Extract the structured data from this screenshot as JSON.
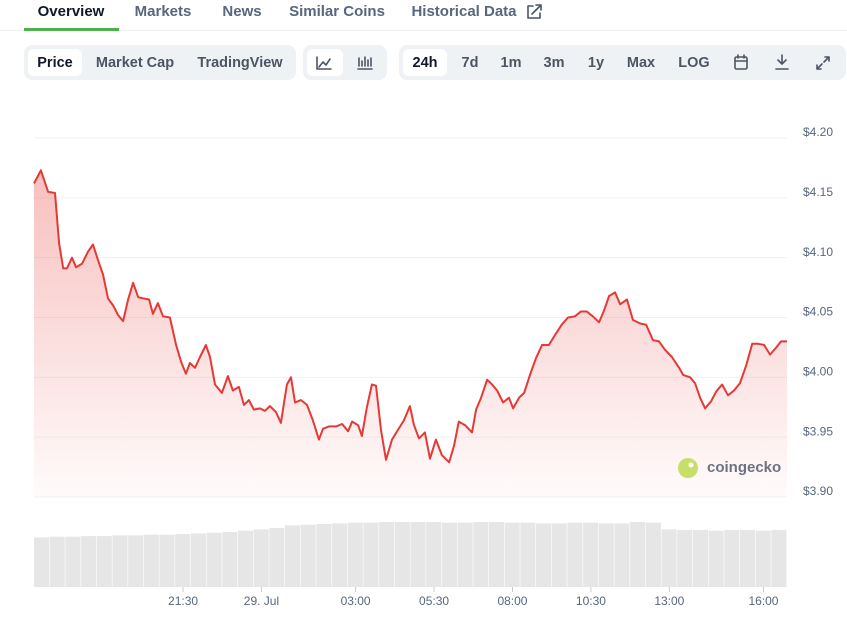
{
  "tabs": [
    {
      "label": "Overview",
      "active": true
    },
    {
      "label": "Markets",
      "active": false
    },
    {
      "label": "News",
      "active": false
    },
    {
      "label": "Similar Coins",
      "active": false
    },
    {
      "label": "Historical Data",
      "active": false
    }
  ],
  "toolbar": {
    "modes": [
      {
        "label": "Price",
        "active": true
      },
      {
        "label": "Market Cap",
        "active": false
      },
      {
        "label": "TradingView",
        "active": false
      }
    ],
    "ranges": [
      {
        "label": "24h",
        "active": true
      },
      {
        "label": "7d",
        "active": false
      },
      {
        "label": "1m",
        "active": false
      },
      {
        "label": "3m",
        "active": false
      },
      {
        "label": "1y",
        "active": false
      },
      {
        "label": "Max",
        "active": false
      },
      {
        "label": "LOG",
        "active": false
      }
    ]
  },
  "watermark": "coingecko",
  "chart_data": {
    "type": "line",
    "color": "#e53935",
    "fill": true,
    "grid": true,
    "x": [
      0,
      0.22,
      0.45,
      0.67,
      0.8,
      0.93,
      1.05,
      1.21,
      1.34,
      1.53,
      1.72,
      1.88,
      2.04,
      2.2,
      2.36,
      2.52,
      2.68,
      2.84,
      3.0,
      3.16,
      3.32,
      3.47,
      3.67,
      3.79,
      3.95,
      4.11,
      4.33,
      4.53,
      4.69,
      4.84,
      4.97,
      5.13,
      5.29,
      5.48,
      5.61,
      5.77,
      5.99,
      6.18,
      6.34,
      6.53,
      6.69,
      6.85,
      7.01,
      7.2,
      7.36,
      7.52,
      7.71,
      7.87,
      8.06,
      8.19,
      8.32,
      8.51,
      8.7,
      8.89,
      9.08,
      9.21,
      9.4,
      9.63,
      9.82,
      10.01,
      10.14,
      10.33,
      10.45,
      10.61,
      10.77,
      10.9,
      11.06,
      11.22,
      11.41,
      11.6,
      11.79,
      11.98,
      12.11,
      12.27,
      12.46,
      12.62,
      12.81,
      13.0,
      13.23,
      13.39,
      13.54,
      13.74,
      13.96,
      14.09,
      14.25,
      14.44,
      14.6,
      14.76,
      14.95,
      15.14,
      15.27,
      15.46,
      15.62,
      15.81,
      16.0,
      16.19,
      16.41,
      16.6,
      16.82,
      17.02,
      17.24,
      17.43,
      17.62,
      17.81,
      18.01,
      18.17,
      18.33,
      18.52,
      18.68,
      18.9,
      19.09,
      19.32,
      19.51,
      19.73,
      19.92,
      20.11,
      20.33,
      20.56,
      20.69,
      20.91,
      21.07,
      21.23,
      21.39,
      21.58,
      21.74,
      21.93,
      22.12,
      22.31,
      22.5,
      22.7,
      22.89,
      23.08,
      23.27,
      23.46,
      23.66,
      23.81,
      24.0
    ],
    "values": [
      4.162,
      4.173,
      4.155,
      4.154,
      4.112,
      4.091,
      4.091,
      4.1,
      4.092,
      4.095,
      4.105,
      4.111,
      4.098,
      4.086,
      4.066,
      4.06,
      4.052,
      4.047,
      4.065,
      4.079,
      4.067,
      4.066,
      4.065,
      4.053,
      4.062,
      4.051,
      4.05,
      4.027,
      4.013,
      4.003,
      4.012,
      4.008,
      4.017,
      4.027,
      4.017,
      3.994,
      3.987,
      4.001,
      3.989,
      3.992,
      3.977,
      3.981,
      3.973,
      3.974,
      3.972,
      3.976,
      3.971,
      3.962,
      3.994,
      4.0,
      3.979,
      3.981,
      3.977,
      3.964,
      3.948,
      3.957,
      3.959,
      3.959,
      3.961,
      3.955,
      3.963,
      3.96,
      3.951,
      3.975,
      3.994,
      3.993,
      3.956,
      3.931,
      3.948,
      3.956,
      3.964,
      3.976,
      3.96,
      3.949,
      3.954,
      3.932,
      3.948,
      3.935,
      3.929,
      3.943,
      3.963,
      3.96,
      3.954,
      3.973,
      3.983,
      3.998,
      3.994,
      3.989,
      3.979,
      3.983,
      3.974,
      3.983,
      3.987,
      4.002,
      4.016,
      4.027,
      4.027,
      4.035,
      4.044,
      4.05,
      4.051,
      4.055,
      4.055,
      4.051,
      4.046,
      4.056,
      4.068,
      4.071,
      4.061,
      4.065,
      4.048,
      4.045,
      4.044,
      4.031,
      4.03,
      4.023,
      4.017,
      4.008,
      4.002,
      4.0,
      3.995,
      3.983,
      3.974,
      3.98,
      3.988,
      3.994,
      3.985,
      3.989,
      3.995,
      4.01,
      4.028,
      4.028,
      4.027,
      4.019,
      4.025,
      4.03,
      4.03
    ],
    "xlim": [
      0,
      24
    ],
    "xticks": [
      {
        "value": 4.75,
        "label": "21:30"
      },
      {
        "value": 7.25,
        "label": "29. Jul"
      },
      {
        "value": 10.25,
        "label": "03:00"
      },
      {
        "value": 12.75,
        "label": "05:30"
      },
      {
        "value": 15.25,
        "label": "08:00"
      },
      {
        "value": 17.75,
        "label": "10:30"
      },
      {
        "value": 20.25,
        "label": "13:00"
      },
      {
        "value": 23.25,
        "label": "16:00"
      }
    ],
    "ylim": [
      3.9,
      4.2
    ],
    "yticks": [
      {
        "value": 3.9,
        "label": "$3.90"
      },
      {
        "value": 3.95,
        "label": "$3.95"
      },
      {
        "value": 4.0,
        "label": "$4.00"
      },
      {
        "value": 4.05,
        "label": "$4.05"
      },
      {
        "value": 4.1,
        "label": "$4.10"
      },
      {
        "value": 4.15,
        "label": "$4.15"
      },
      {
        "value": 4.2,
        "label": "$4.20"
      }
    ],
    "volume": {
      "color": "#e6e6e6",
      "lim": [
        0,
        100
      ],
      "values": [
        74,
        75,
        75,
        76,
        76,
        77,
        77,
        78,
        78,
        79,
        80,
        81,
        82,
        84,
        86,
        88,
        92,
        93,
        94,
        95,
        96,
        96,
        97,
        97,
        97,
        97,
        96,
        96,
        97,
        97,
        96,
        96,
        95,
        95,
        96,
        96,
        95,
        95,
        97,
        96,
        86,
        85,
        85,
        84,
        85,
        85,
        84,
        85
      ]
    }
  }
}
